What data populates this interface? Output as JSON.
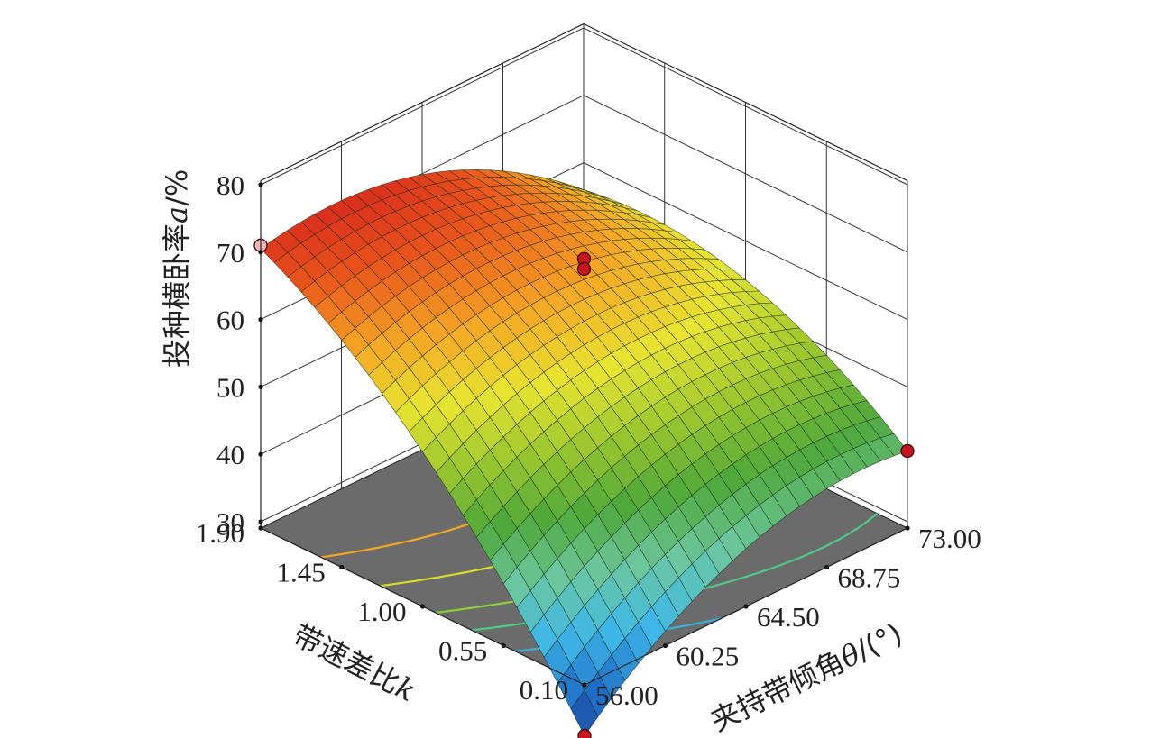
{
  "chart_data": {
    "type": "surface3d",
    "x_axis": {
      "label": "夹持带倾角θ/(°)",
      "label_text": "夹持带倾角",
      "label_var": "θ",
      "label_unit": "/(°)",
      "ticks": [
        "56.00",
        "60.25",
        "64.50",
        "68.75",
        "73.00"
      ],
      "range": [
        56.0,
        73.0
      ]
    },
    "y_axis": {
      "label": "带速差比k",
      "label_text": "带速差比",
      "label_var": "k",
      "ticks": [
        "0.10",
        "0.55",
        "1.00",
        "1.45",
        "1.90"
      ],
      "range": [
        0.1,
        1.9
      ]
    },
    "z_axis": {
      "label": "投种横卧率a/%",
      "label_text": "投种横卧率",
      "label_var": "a",
      "label_unit": "/%",
      "ticks": [
        "30",
        "40",
        "50",
        "60",
        "70",
        "80"
      ],
      "range": [
        30,
        80
      ]
    },
    "surface": {
      "corners": [
        {
          "theta": 56.0,
          "k": 0.1,
          "a": 21.5
        },
        {
          "theta": 73.0,
          "k": 0.1,
          "a": 40.5
        },
        {
          "theta": 56.0,
          "k": 1.9,
          "a": 71.0
        },
        {
          "theta": 73.0,
          "k": 1.9,
          "a": 56.0
        }
      ],
      "max_point": {
        "theta": 60.5,
        "k": 1.9,
        "a": 73.5
      }
    },
    "design_points": [
      {
        "theta": 56.0,
        "k": 0.1,
        "a": 21.5
      },
      {
        "theta": 73.0,
        "k": 0.1,
        "a": 40.5
      },
      {
        "theta": 56.0,
        "k": 1.9,
        "a": 71.0
      },
      {
        "theta": 64.5,
        "k": 1.0,
        "a": 69.0
      },
      {
        "theta": 64.5,
        "k": 1.0,
        "a": 67.5
      }
    ],
    "colormap": [
      "#1b2f8c",
      "#1f6fc7",
      "#3fb8e8",
      "#6cc7a0",
      "#4fa83a",
      "#9ac62e",
      "#e8e530",
      "#f5a623",
      "#e8521b",
      "#d0181c"
    ],
    "floor_color": "#6b6b6b",
    "contour_colors": [
      "#f5a623",
      "#d7dd2a",
      "#8ad03a",
      "#4fc98a",
      "#3ab0d8",
      "#2a7fe0"
    ],
    "grid": true
  }
}
